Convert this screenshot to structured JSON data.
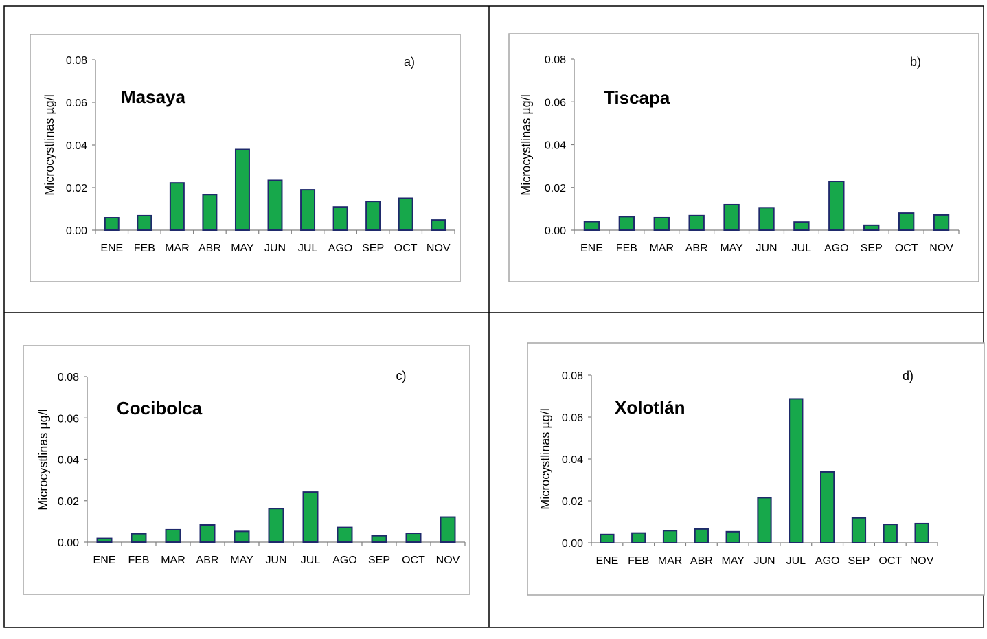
{
  "colors": {
    "bar_fill": "#17a84b",
    "bar_stroke": "#1f2a6b",
    "frame": "#a6a6a6",
    "axis": "#808080"
  },
  "chart_data": [
    {
      "type": "bar",
      "panel": "a)",
      "title": "Masaya",
      "ylabel": "Microcystlinas µg/l",
      "xlabel": "",
      "ylim": [
        0,
        0.08
      ],
      "ytick_labels": [
        "0.00",
        "0.02",
        "0.04",
        "0.06",
        "0.08"
      ],
      "categories": [
        "ENE",
        "FEB",
        "MAR",
        "ABR",
        "MAY",
        "JUN",
        "JUL",
        "AGO",
        "SEP",
        "OCT",
        "NOV"
      ],
      "values": [
        0.0058,
        0.0068,
        0.0222,
        0.0167,
        0.0379,
        0.0234,
        0.019,
        0.0109,
        0.0135,
        0.015,
        0.0048
      ]
    },
    {
      "type": "bar",
      "panel": "b)",
      "title": "Tiscapa",
      "ylabel": "Microcystlinas µg/l",
      "xlabel": "",
      "ylim": [
        0,
        0.08
      ],
      "ytick_labels": [
        "0.00",
        "0.02",
        "0.04",
        "0.06",
        "0.08"
      ],
      "categories": [
        "ENE",
        "FEB",
        "MAR",
        "ABR",
        "MAY",
        "JUN",
        "JUL",
        "AGO",
        "SEP",
        "OCT",
        "NOV"
      ],
      "values": [
        0.004,
        0.0063,
        0.0058,
        0.0068,
        0.0119,
        0.0105,
        0.0038,
        0.0228,
        0.0023,
        0.008,
        0.0071
      ]
    },
    {
      "type": "bar",
      "panel": "c)",
      "title": "Cocibolca",
      "ylabel": "Microcystlinas µg/l",
      "xlabel": "",
      "ylim": [
        0,
        0.08
      ],
      "ytick_labels": [
        "0.00",
        "0.02",
        "0.04",
        "0.06",
        "0.08"
      ],
      "categories": [
        "ENE",
        "FEB",
        "MAR",
        "ABR",
        "MAY",
        "JUN",
        "JUL",
        "AGO",
        "SEP",
        "OCT",
        "NOV"
      ],
      "values": [
        0.0018,
        0.0041,
        0.006,
        0.0083,
        0.0052,
        0.0162,
        0.0242,
        0.0071,
        0.0031,
        0.0043,
        0.0121
      ]
    },
    {
      "type": "bar",
      "panel": "d)",
      "title": "Xolotlán",
      "ylabel": "Microcystlinas µg/l",
      "xlabel": "",
      "ylim": [
        0,
        0.08
      ],
      "ytick_labels": [
        "0.00",
        "0.02",
        "0.04",
        "0.06",
        "0.08"
      ],
      "categories": [
        "ENE",
        "FEB",
        "MAR",
        "ABR",
        "MAY",
        "JUN",
        "JUL",
        "AGO",
        "SEP",
        "OCT",
        "NOV"
      ],
      "values": [
        0.004,
        0.0047,
        0.0058,
        0.0066,
        0.0053,
        0.0215,
        0.0687,
        0.0338,
        0.0119,
        0.0088,
        0.0092
      ]
    }
  ]
}
